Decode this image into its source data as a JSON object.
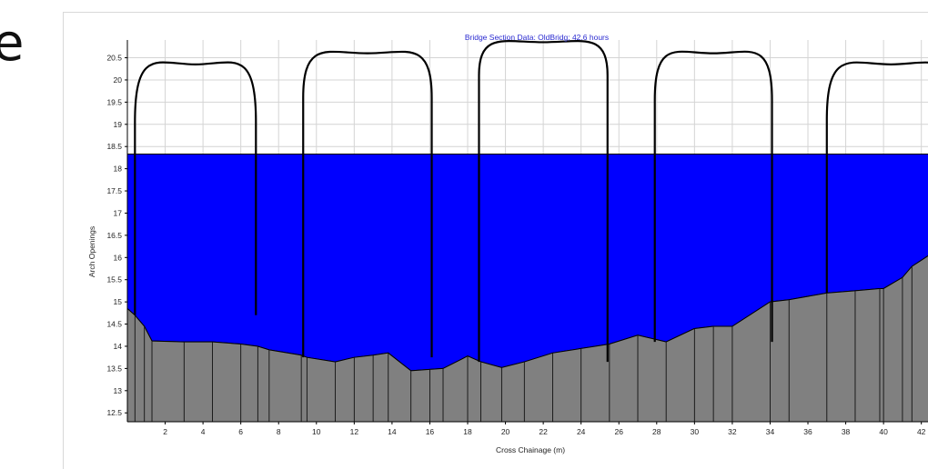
{
  "slide": {
    "edge_text": "e"
  },
  "chart_data": {
    "type": "area",
    "title": "Bridge Section Data: OldBridg; 42.6 hours",
    "xlabel": "Cross Chainage (m)",
    "ylabel": "Arch Openings",
    "xlim": [
      0,
      42.4
    ],
    "ylim": [
      12.3,
      20.9
    ],
    "x_ticks": [
      2,
      4,
      6,
      8,
      10,
      12,
      14,
      16,
      18,
      20,
      22,
      24,
      26,
      28,
      30,
      32,
      34,
      36,
      38,
      40,
      42
    ],
    "y_ticks": [
      12.5,
      13,
      13.5,
      14,
      14.5,
      15,
      15.5,
      16,
      16.5,
      17,
      17.5,
      18,
      18.5,
      19,
      19.5,
      20,
      20.5
    ],
    "grid": true,
    "water_level": 18.33,
    "series": [
      {
        "role": "water",
        "color": "#0000ff"
      },
      {
        "role": "ground",
        "color": "#808080",
        "x": [
          0,
          0.4,
          0.9,
          1.3,
          3.0,
          4.5,
          6.0,
          6.9,
          7.5,
          9.2,
          9.5,
          11.0,
          12.0,
          13.0,
          13.8,
          15.0,
          16.0,
          16.7,
          18.0,
          18.7,
          19.8,
          21.0,
          22.5,
          24.0,
          25.5,
          27.0,
          28.5,
          30.0,
          31.0,
          32.0,
          34.0,
          35.0,
          37.0,
          38.5,
          39.8,
          40.0,
          41.0,
          41.5,
          42.4
        ],
        "y": [
          14.85,
          14.7,
          14.45,
          14.12,
          14.1,
          14.1,
          14.05,
          14.0,
          13.92,
          13.8,
          13.75,
          13.65,
          13.75,
          13.8,
          13.85,
          13.45,
          13.48,
          13.5,
          13.78,
          13.65,
          13.52,
          13.65,
          13.85,
          13.95,
          14.05,
          14.25,
          14.1,
          14.4,
          14.45,
          14.45,
          15.0,
          15.05,
          15.2,
          15.25,
          15.3,
          15.3,
          15.55,
          15.8,
          16.05
        ]
      }
    ],
    "arches": [
      {
        "left": 0.4,
        "right": 6.8,
        "spring": 19.05,
        "crown": 20.35,
        "leg_bottom": 14.7
      },
      {
        "left": 9.3,
        "right": 16.1,
        "spring": 19.6,
        "crown": 20.6,
        "leg_bottom": 13.75
      },
      {
        "left": 18.6,
        "right": 25.4,
        "spring": 20.1,
        "crown": 20.85,
        "leg_bottom": 13.65
      },
      {
        "left": 27.9,
        "right": 34.1,
        "spring": 19.55,
        "crown": 20.6,
        "leg_bottom": 14.1
      },
      {
        "left": 37.0,
        "right": 43.8,
        "spring": 19.1,
        "crown": 20.35,
        "leg_bottom": 15.2
      }
    ]
  }
}
